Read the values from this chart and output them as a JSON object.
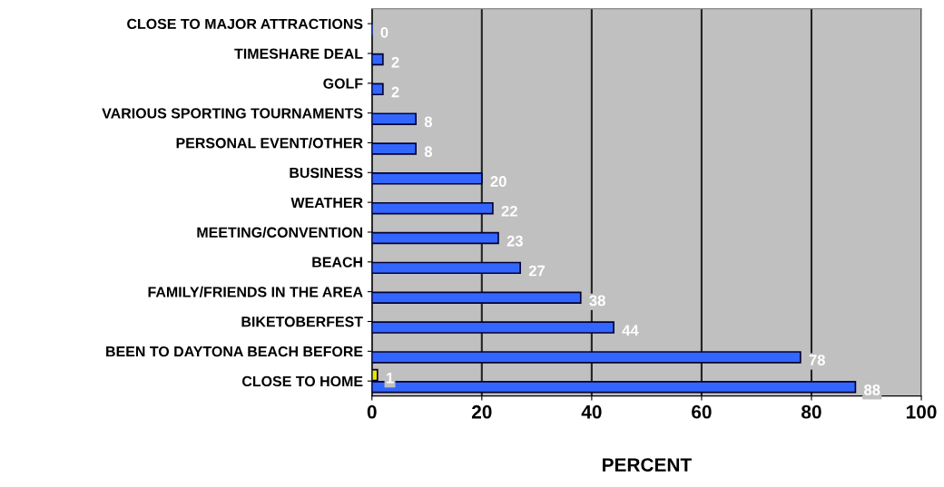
{
  "chart_data": {
    "type": "bar",
    "orientation": "horizontal",
    "xlabel": "PERCENT",
    "categories": [
      "CLOSE TO MAJOR ATTRACTIONS",
      "TIMESHARE DEAL",
      "GOLF",
      "VARIOUS SPORTING TOURNAMENTS",
      "PERSONAL EVENT/OTHER",
      "BUSINESS",
      "WEATHER",
      "MEETING/CONVENTION",
      "BEACH",
      "FAMILY/FRIENDS IN THE AREA",
      "BIKETOBERFEST",
      "BEEN TO DAYTONA BEACH BEFORE",
      "CLOSE TO HOME"
    ],
    "series": [
      {
        "color": "#3366ff",
        "values": [
          0,
          2,
          2,
          8,
          8,
          20,
          22,
          23,
          27,
          38,
          44,
          78,
          88
        ]
      },
      {
        "color": "#e6e600",
        "values": [
          null,
          null,
          null,
          null,
          null,
          null,
          null,
          null,
          null,
          null,
          null,
          null,
          1
        ]
      }
    ],
    "xlim": [
      0,
      100
    ],
    "xticks": [
      0,
      20,
      40,
      60,
      80,
      100
    ],
    "grid": "x",
    "data_labels": true,
    "legend": false
  }
}
